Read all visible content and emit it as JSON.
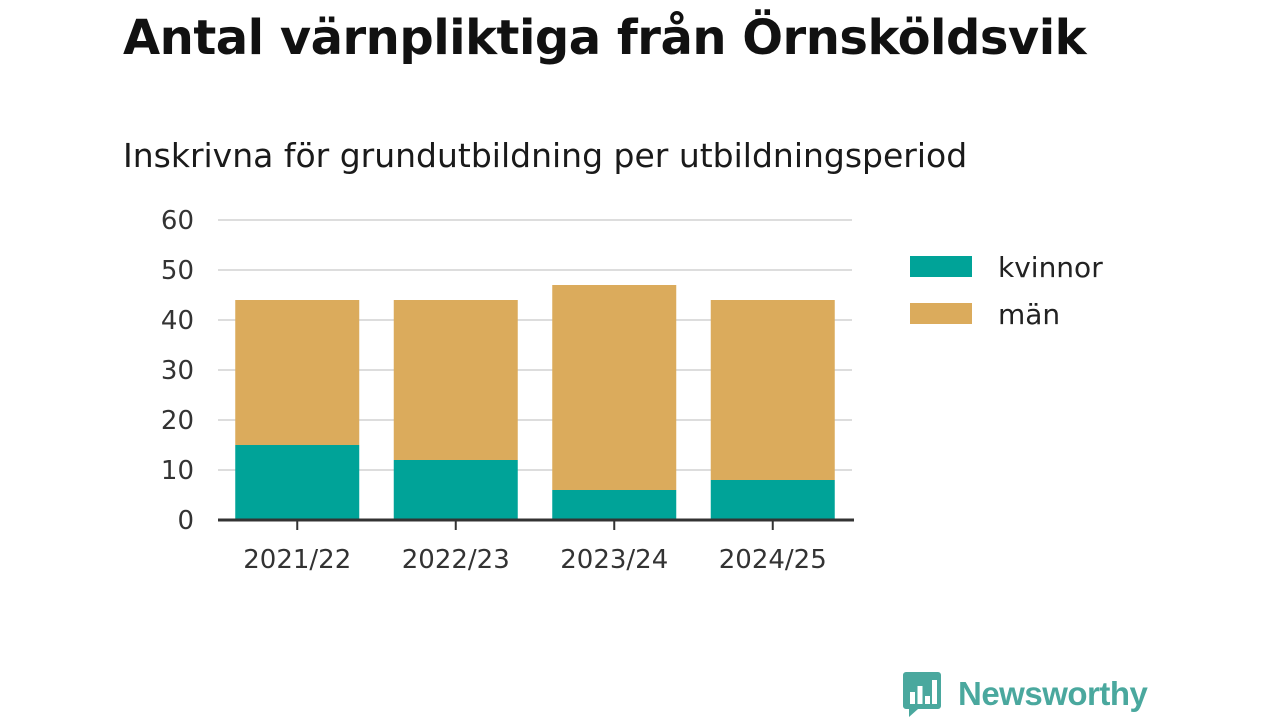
{
  "chart_data": {
    "type": "bar",
    "stacked": true,
    "title": "Antal värnpliktiga från Örnsköldsvik",
    "subtitle": "Inskrivna för grundutbildning per utbildningsperiod",
    "categories": [
      "2021/22",
      "2022/23",
      "2023/24",
      "2024/25"
    ],
    "series": [
      {
        "name": "kvinnor",
        "color": "#00a398",
        "values": [
          15,
          12,
          6,
          8
        ]
      },
      {
        "name": "män",
        "color": "#dbab5c",
        "values": [
          29,
          32,
          41,
          36
        ]
      }
    ],
    "ylim": [
      0,
      60
    ],
    "yticks": [
      "0",
      "10",
      "20",
      "30",
      "40",
      "50",
      "60"
    ],
    "xlabel": "",
    "ylabel": "",
    "grid": true,
    "legend_position": "right"
  },
  "brand": {
    "name": "Newsworthy",
    "logo_icon": "bar-chart-speech-bubble-icon",
    "color": "#4aa89e"
  }
}
